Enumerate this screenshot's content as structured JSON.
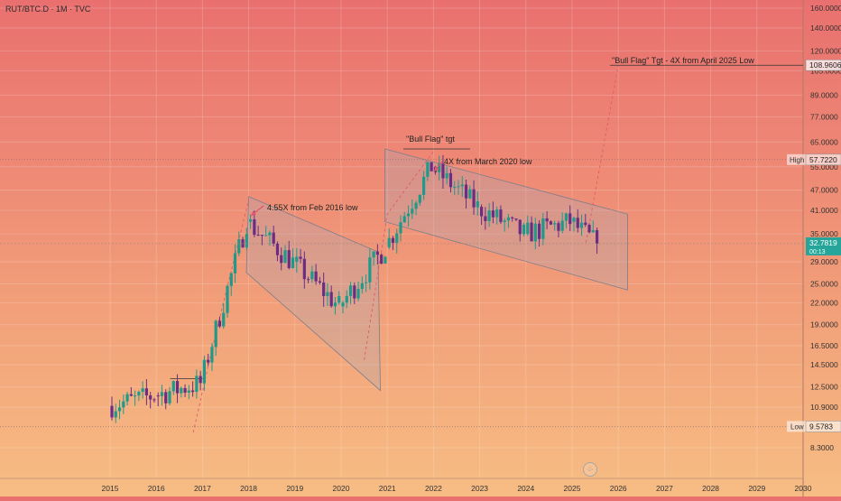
{
  "header": {
    "title": "RUT/BTC.D · 1M · TVC"
  },
  "logo_glyph": "♧",
  "chart_data": {
    "type": "candlestick",
    "title": "RUT/BTC.D · 1M · TVC",
    "y_scale": "log",
    "y_ticks": [
      "160.0000",
      "140.0000",
      "120.0000",
      "105.0000",
      "89.0000",
      "77.0000",
      "65.0000",
      "55.0000",
      "47.0000",
      "41.0000",
      "35.0000",
      "29.0000",
      "25.0000",
      "22.0000",
      "19.0000",
      "16.5000",
      "14.5000",
      "12.5000",
      "10.9000",
      "8.3000"
    ],
    "x_ticks": [
      "2015",
      "2016",
      "2017",
      "2018",
      "2019",
      "2020",
      "2021",
      "2022",
      "2023",
      "2024",
      "2025",
      "2026",
      "2027",
      "2028",
      "2029",
      "2030"
    ],
    "markers": {
      "target": {
        "label": "108.9606",
        "value": 108.9606
      },
      "high": {
        "label": "High",
        "value_text": "57.7220",
        "value": 57.722
      },
      "last": {
        "value_text": "32.7819",
        "value": 32.7819,
        "sub_text": "00:13",
        "color": "#26a69a"
      },
      "low": {
        "label": "Low",
        "value_text": "9.5783",
        "value": 9.5783
      }
    },
    "annotations": [
      {
        "text": "\"Bull Flag\" Tgt - 4X from April 2025 Low"
      },
      {
        "text": "\"Bull Flag\" tgt"
      },
      {
        "text": "4X from March 2020 low"
      },
      {
        "text": "4.55X from Feb 2016 low"
      }
    ],
    "candles_yearly_shape": [
      {
        "year": 2015,
        "open": 11.0,
        "close": 11.8
      },
      {
        "year": 2016,
        "open": 11.8,
        "close": 12.8
      },
      {
        "year": 2017,
        "open": 12.8,
        "close": 38.0
      },
      {
        "year": 2018,
        "open": 38.0,
        "close": 29.0
      },
      {
        "year": 2019,
        "open": 29.0,
        "close": 21.5
      },
      {
        "year": 2020,
        "open": 21.5,
        "close": 32.0
      },
      {
        "year": 2021,
        "open": 32.0,
        "close": 55.0
      },
      {
        "year": 2022,
        "open": 55.0,
        "close": 42.0
      },
      {
        "year": 2023,
        "open": 42.0,
        "close": 35.0
      },
      {
        "year": 2024,
        "open": 35.0,
        "close": 38.0
      },
      {
        "year": 2025,
        "open": 38.0,
        "close": 32.7819
      }
    ],
    "colors": {
      "up": "#1f9a8a",
      "down": "#6b2d84"
    }
  }
}
